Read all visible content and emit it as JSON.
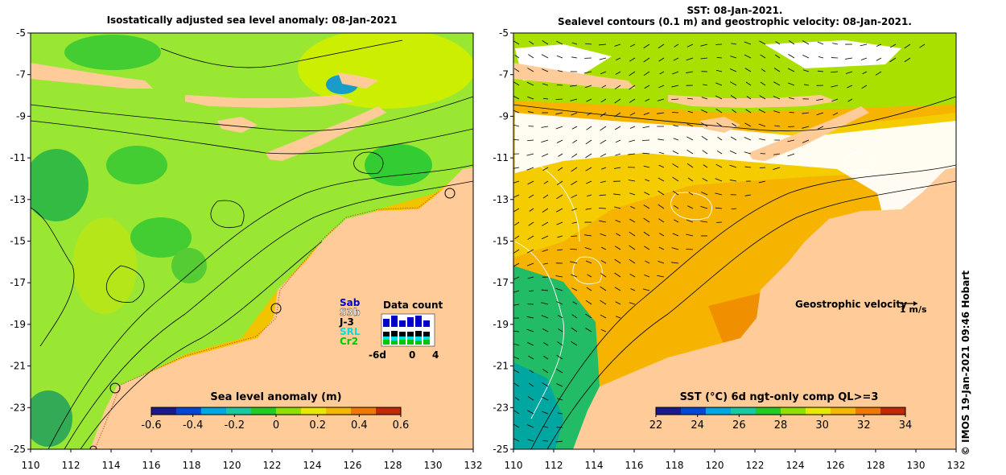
{
  "left_panel": {
    "title": "Isostatically adjusted sea level anomaly: 08-Jan-2021",
    "colorbar": {
      "label": "Sea level anomaly (m)",
      "ticks": [
        "-0.6",
        "-0.4",
        "-0.2",
        "0",
        "0.2",
        "0.4",
        "0.6"
      ],
      "colors": [
        "#1a1a8c",
        "#0047d6",
        "#00a6e0",
        "#19c8a0",
        "#22cc22",
        "#8ee000",
        "#e8e800",
        "#f4b800",
        "#f07800",
        "#c42800"
      ]
    },
    "data_count": {
      "title": "Data count",
      "missions": [
        "Sab",
        "S3b",
        "J-3",
        "SRL",
        "Cr2"
      ],
      "mission_colors": [
        "#0000cc",
        "#ffffff",
        "#000000",
        "#00e0e0",
        "#00c800"
      ],
      "axis_labels": [
        "-6d",
        "0",
        "4"
      ]
    },
    "colors": {
      "land": "#ffcc99",
      "sea_mid": "#99e633",
      "sea_high": "#ccee00",
      "sea_low": "#33cc33"
    }
  },
  "right_panel": {
    "title_line1": "SST: 08-Jan-2021.",
    "title_line2": "Sealevel contours (0.1 m) and geostrophic velocity: 08-Jan-2021.",
    "velocity_legend": "Geostrophic velocity",
    "velocity_unit": "1 m/s",
    "colorbar": {
      "label": "SST (°C) 6d ngt-only comp QL>=3",
      "ticks": [
        "22",
        "24",
        "26",
        "28",
        "30",
        "32",
        "34"
      ],
      "colors": [
        "#1a1a8c",
        "#0047d6",
        "#00a6e0",
        "#19c8a0",
        "#22cc22",
        "#8ee000",
        "#e8e800",
        "#f4b800",
        "#f07800",
        "#c42800"
      ]
    },
    "colors": {
      "land": "#ffcc99",
      "sea_warm": "#f6b400",
      "sea_cool": "#22bb66",
      "cloud": "#ffffff"
    }
  },
  "axes": {
    "y_ticks": [
      "-5",
      "-7",
      "-9",
      "-11",
      "-13",
      "-15",
      "-17",
      "-19",
      "-21",
      "-23",
      "-25"
    ],
    "x_ticks": [
      "110",
      "112",
      "114",
      "116",
      "118",
      "120",
      "122",
      "124",
      "126",
      "128",
      "130",
      "132"
    ],
    "lat_range": [
      -25,
      -5
    ],
    "lon_range": [
      110,
      132
    ]
  },
  "credit": "© IMOS 19-Jan-2021 09:46 Hobart"
}
